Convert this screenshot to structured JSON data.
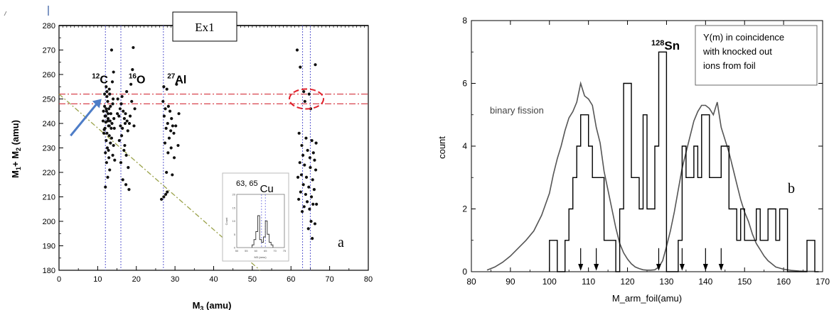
{
  "chart_data": [
    {
      "type": "scatter",
      "panel_label": "a",
      "box_label": "Ex1",
      "xlabel_main": "M",
      "xlabel_sub": "3",
      "xlabel_unit": " (amu)",
      "ylabel_a": "M",
      "ylabel_a_sub": "1",
      "ylabel_b": "+ M",
      "ylabel_b_sub": "2",
      "ylabel_unit": " (amu)",
      "xlim": [
        0,
        80
      ],
      "ylim": [
        180,
        280
      ],
      "x_ticks": [
        "0",
        "10",
        "20",
        "30",
        "40",
        "50",
        "60",
        "70",
        "80"
      ],
      "y_ticks": [
        "180",
        "190",
        "200",
        "210",
        "220",
        "230",
        "240",
        "250",
        "260",
        "270",
        "280"
      ],
      "element_labels": [
        {
          "mass": "12",
          "symbol": "C",
          "x": 8.5,
          "y": 259
        },
        {
          "mass": "16",
          "symbol": "O",
          "x": 18,
          "y": 259
        },
        {
          "mass": "27",
          "symbol": "Al",
          "x": 28,
          "y": 259
        }
      ],
      "vlines": [
        12,
        16,
        27,
        63,
        65
      ],
      "hlines": [
        248,
        252
      ],
      "diagonal_line": {
        "x": [
          0,
          52
        ],
        "y": [
          252,
          180
        ]
      },
      "highlight_ellipse": {
        "x": 64,
        "y": 250
      },
      "arrow": {
        "from": [
          3,
          235
        ],
        "to": [
          11,
          250
        ]
      },
      "points": [
        [
          12.2,
          255
        ],
        [
          13.1,
          252
        ],
        [
          12.6,
          249
        ],
        [
          11.8,
          247
        ],
        [
          12.9,
          246
        ],
        [
          12.3,
          245
        ],
        [
          13.4,
          244
        ],
        [
          11.9,
          243
        ],
        [
          12.7,
          242
        ],
        [
          13.2,
          241
        ],
        [
          12.1,
          240.5
        ],
        [
          12.8,
          239
        ],
        [
          13.5,
          238
        ],
        [
          11.7,
          237.5
        ],
        [
          12.4,
          236
        ],
        [
          13.0,
          235
        ],
        [
          12.2,
          233
        ],
        [
          13.3,
          232
        ],
        [
          12.5,
          230
        ],
        [
          12.0,
          228
        ],
        [
          12.9,
          226
        ],
        [
          12.3,
          224
        ],
        [
          13.1,
          221
        ],
        [
          12.6,
          218
        ],
        [
          12.0,
          214
        ],
        [
          13.6,
          270
        ],
        [
          14.1,
          261
        ],
        [
          13.8,
          257
        ],
        [
          12.4,
          253
        ],
        [
          14.0,
          250
        ],
        [
          13.9,
          248
        ],
        [
          11.5,
          245
        ],
        [
          14.2,
          242
        ],
        [
          11.4,
          241
        ],
        [
          13.7,
          240
        ],
        [
          14.3,
          238
        ],
        [
          11.6,
          236
        ],
        [
          13.6,
          234
        ],
        [
          14.1,
          231
        ],
        [
          12.8,
          229
        ],
        [
          13.9,
          227
        ],
        [
          14.4,
          225
        ],
        [
          12.1,
          243
        ],
        [
          12.6,
          241
        ],
        [
          13.0,
          239
        ],
        [
          11.9,
          238
        ],
        [
          12.7,
          244
        ],
        [
          13.3,
          247
        ],
        [
          12.4,
          251
        ],
        [
          11.8,
          252
        ],
        [
          13.0,
          254
        ],
        [
          12.2,
          246
        ],
        [
          15.2,
          250
        ],
        [
          16.1,
          248
        ],
        [
          15.8,
          246
        ],
        [
          16.6,
          245
        ],
        [
          17.2,
          244
        ],
        [
          15.5,
          243
        ],
        [
          16.9,
          242
        ],
        [
          17.6,
          241
        ],
        [
          18.2,
          240
        ],
        [
          15.9,
          239
        ],
        [
          16.4,
          238
        ],
        [
          17.8,
          237
        ],
        [
          16.2,
          235
        ],
        [
          15.6,
          233
        ],
        [
          17.0,
          231
        ],
        [
          16.8,
          229
        ],
        [
          17.4,
          227
        ],
        [
          16.0,
          224
        ],
        [
          17.9,
          222
        ],
        [
          16.5,
          217
        ],
        [
          17.3,
          215
        ],
        [
          18.1,
          213
        ],
        [
          19.2,
          271
        ],
        [
          19.0,
          262
        ],
        [
          18.6,
          256
        ],
        [
          17.5,
          253
        ],
        [
          18.8,
          249
        ],
        [
          19.6,
          246
        ],
        [
          16.3,
          251
        ],
        [
          15.1,
          244
        ],
        [
          18.4,
          243
        ],
        [
          17.1,
          240
        ],
        [
          19.4,
          239
        ],
        [
          27.1,
          255
        ],
        [
          27.9,
          254
        ],
        [
          28.3,
          247
        ],
        [
          27.5,
          246
        ],
        [
          28.7,
          245
        ],
        [
          27.2,
          243
        ],
        [
          29.1,
          242
        ],
        [
          28.1,
          240
        ],
        [
          29.4,
          239
        ],
        [
          27.7,
          238
        ],
        [
          28.9,
          237
        ],
        [
          29.7,
          236
        ],
        [
          28.5,
          234
        ],
        [
          27.4,
          232
        ],
        [
          29.0,
          230
        ],
        [
          28.2,
          228
        ],
        [
          27.8,
          220
        ],
        [
          29.3,
          219
        ],
        [
          28.0,
          212
        ],
        [
          27.6,
          211
        ],
        [
          27.1,
          210
        ],
        [
          26.5,
          209
        ],
        [
          30.4,
          256
        ],
        [
          31.0,
          244
        ],
        [
          26.9,
          249
        ],
        [
          30.2,
          239
        ],
        [
          30.8,
          231
        ],
        [
          29.8,
          226
        ],
        [
          61.6,
          270
        ],
        [
          62.4,
          263
        ],
        [
          63.3,
          253
        ],
        [
          64.7,
          252
        ],
        [
          63.6,
          249
        ],
        [
          65.1,
          246
        ],
        [
          66.3,
          264
        ],
        [
          62.1,
          236
        ],
        [
          63.9,
          234
        ],
        [
          65.4,
          233
        ],
        [
          66.5,
          232
        ],
        [
          62.8,
          231
        ],
        [
          64.3,
          229
        ],
        [
          65.8,
          228
        ],
        [
          63.1,
          227
        ],
        [
          64.9,
          226
        ],
        [
          66.1,
          225
        ],
        [
          62.3,
          224
        ],
        [
          63.5,
          223
        ],
        [
          65.0,
          222
        ],
        [
          66.4,
          221
        ],
        [
          62.7,
          219
        ],
        [
          64.0,
          218
        ],
        [
          65.6,
          217
        ],
        [
          63.2,
          215
        ],
        [
          64.6,
          214
        ],
        [
          66.0,
          213
        ],
        [
          62.5,
          212
        ],
        [
          63.8,
          211
        ],
        [
          65.3,
          210
        ],
        [
          62.0,
          209
        ],
        [
          64.2,
          208
        ],
        [
          65.7,
          207
        ],
        [
          63.4,
          206
        ],
        [
          64.8,
          205
        ],
        [
          62.9,
          204
        ],
        [
          65.2,
          200
        ],
        [
          66.2,
          199
        ],
        [
          64.5,
          197
        ],
        [
          65.5,
          193
        ],
        [
          61.8,
          218
        ],
        [
          66.6,
          207
        ]
      ],
      "inset": {
        "title_mass": "63, 65",
        "title_symbol": "Cu",
        "xlabel": "M3 (amu)",
        "ylabel": "Count",
        "xlim": [
          50,
          75
        ],
        "ylim": [
          0,
          20
        ],
        "x_ticks": [
          "50",
          "55",
          "60",
          "65",
          "70",
          "75"
        ],
        "y_ticks": [
          "0",
          "5",
          "10",
          "15",
          "20"
        ],
        "bins": [
          58,
          59,
          60,
          61,
          62,
          63,
          64,
          65,
          66,
          67,
          68
        ],
        "counts": [
          1,
          3,
          6,
          12,
          3,
          2,
          4,
          10,
          5,
          2,
          1
        ]
      }
    },
    {
      "type": "line",
      "panel_label": "b",
      "xlabel": "M_arm_foil(amu)",
      "ylabel": "count",
      "xlim": [
        80,
        170
      ],
      "ylim": [
        0,
        8
      ],
      "x_ticks": [
        "80",
        "90",
        "100",
        "110",
        "120",
        "130",
        "140",
        "150",
        "160",
        "170"
      ],
      "y_ticks": [
        "0",
        "2",
        "4",
        "6",
        "8"
      ],
      "annotation_mass": "128",
      "annotation_symbol": "Sn",
      "curve_label": "binary fission",
      "legend_lines": [
        "Y(m) in coincidence",
        "with knocked out",
        "ions from foil"
      ],
      "arrows_x": [
        108,
        112,
        128,
        134,
        140,
        144
      ],
      "histogram": {
        "bins": [
          100,
          101,
          102,
          103,
          104,
          105,
          106,
          107,
          108,
          109,
          110,
          111,
          112,
          113,
          114,
          115,
          116,
          117,
          118,
          119,
          120,
          121,
          122,
          123,
          124,
          125,
          126,
          127,
          128,
          129,
          130,
          131,
          132,
          133,
          134,
          135,
          136,
          137,
          138,
          139,
          140,
          141,
          142,
          143,
          144,
          145,
          146,
          147,
          148,
          149,
          150,
          151,
          152,
          153,
          154,
          155,
          156,
          157,
          158,
          159,
          160,
          161,
          162,
          163,
          164,
          165,
          166,
          167,
          168
        ],
        "counts": [
          1,
          1,
          0,
          0,
          1,
          2,
          3,
          4,
          5,
          5,
          4,
          3,
          3,
          3,
          1,
          1,
          1,
          0,
          2,
          6,
          6,
          3,
          3,
          2,
          5,
          2,
          2,
          4,
          7,
          7,
          0,
          0,
          0,
          1,
          4,
          3,
          3,
          4,
          3,
          5,
          5,
          3,
          3,
          3,
          4,
          4,
          2,
          2,
          1,
          2,
          1,
          1,
          1,
          2,
          1,
          1,
          2,
          2,
          1,
          2,
          2,
          0,
          0,
          0,
          0,
          0,
          1,
          1,
          0
        ]
      },
      "fission_curve": {
        "x": [
          84,
          86,
          88,
          90,
          92,
          94,
          96,
          98,
          100,
          101,
          102,
          103,
          104,
          105,
          106,
          107,
          108,
          109,
          110,
          111,
          112,
          113,
          114,
          115,
          116,
          117,
          118,
          119,
          120,
          121,
          122,
          123,
          124,
          125,
          126,
          127,
          128,
          129,
          130,
          131,
          132,
          133,
          134,
          135,
          136,
          137,
          138,
          139,
          140,
          141,
          142,
          143,
          144,
          145,
          146,
          147,
          148,
          149,
          150,
          151,
          152,
          153,
          154,
          155,
          156,
          157,
          158,
          160,
          162,
          164,
          166,
          168
        ],
        "y": [
          0.05,
          0.15,
          0.3,
          0.5,
          0.75,
          1.0,
          1.3,
          1.8,
          2.5,
          3.1,
          3.6,
          4.0,
          4.5,
          4.9,
          5.1,
          5.4,
          6.0,
          5.6,
          5.5,
          5.3,
          4.6,
          4.1,
          3.2,
          2.6,
          2.0,
          1.4,
          0.9,
          0.6,
          0.4,
          0.25,
          0.15,
          0.1,
          0.06,
          0.05,
          0.05,
          0.06,
          0.15,
          0.35,
          0.8,
          1.3,
          1.9,
          2.6,
          3.3,
          3.8,
          4.3,
          4.8,
          5.1,
          5.3,
          5.3,
          5.2,
          5.0,
          5.4,
          4.6,
          4.2,
          3.8,
          3.3,
          2.8,
          2.3,
          1.9,
          1.6,
          1.2,
          0.9,
          0.7,
          0.5,
          0.35,
          0.25,
          0.15,
          0.08,
          0.04,
          0.02,
          0.01,
          0.01
        ]
      }
    }
  ]
}
